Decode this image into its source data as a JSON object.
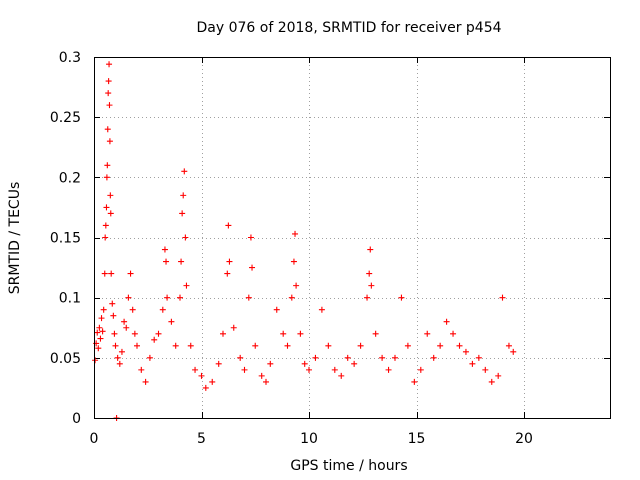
{
  "chart_data": {
    "type": "scatter",
    "title": "Day 076 of 2018, SRMTID for receiver p454",
    "xlabel": "GPS time / hours",
    "ylabel": "SRMTID / TECUs",
    "xlim": [
      0,
      24
    ],
    "ylim": [
      0,
      0.3
    ],
    "x_ticks": [
      0,
      5,
      10,
      15,
      20
    ],
    "x_tick_labels": [
      "0",
      "5",
      "10",
      "15",
      "20"
    ],
    "y_ticks": [
      0,
      0.05,
      0.1,
      0.15,
      0.2,
      0.25,
      0.3
    ],
    "y_tick_labels": [
      "0",
      "0.05",
      "0.1",
      "0.15",
      "0.2",
      "0.25",
      "0.3"
    ],
    "grid": true,
    "marker": "plus",
    "series_color": "#ff0000",
    "series": [
      {
        "name": "SRMTID",
        "points": [
          [
            0.05,
            0.048
          ],
          [
            0.1,
            0.062
          ],
          [
            0.15,
            0.071
          ],
          [
            0.2,
            0.058
          ],
          [
            0.25,
            0.075
          ],
          [
            0.3,
            0.066
          ],
          [
            0.35,
            0.083
          ],
          [
            0.4,
            0.072
          ],
          [
            0.45,
            0.09
          ],
          [
            0.5,
            0.12
          ],
          [
            0.52,
            0.15
          ],
          [
            0.55,
            0.16
          ],
          [
            0.58,
            0.175
          ],
          [
            0.6,
            0.2
          ],
          [
            0.62,
            0.21
          ],
          [
            0.64,
            0.24
          ],
          [
            0.66,
            0.27
          ],
          [
            0.68,
            0.28
          ],
          [
            0.7,
            0.294
          ],
          [
            0.72,
            0.26
          ],
          [
            0.74,
            0.23
          ],
          [
            0.76,
            0.185
          ],
          [
            0.78,
            0.17
          ],
          [
            0.8,
            0.12
          ],
          [
            0.85,
            0.095
          ],
          [
            0.9,
            0.085
          ],
          [
            0.95,
            0.07
          ],
          [
            1.0,
            0.06
          ],
          [
            1.1,
            0.05
          ],
          [
            1.2,
            0.045
          ],
          [
            1.3,
            0.055
          ],
          [
            1.4,
            0.08
          ],
          [
            1.5,
            0.075
          ],
          [
            1.6,
            0.1
          ],
          [
            1.7,
            0.12
          ],
          [
            1.8,
            0.09
          ],
          [
            1.9,
            0.07
          ],
          [
            2.0,
            0.06
          ],
          [
            2.2,
            0.04
          ],
          [
            2.4,
            0.03
          ],
          [
            2.6,
            0.05
          ],
          [
            2.8,
            0.065
          ],
          [
            3.0,
            0.07
          ],
          [
            3.2,
            0.09
          ],
          [
            3.3,
            0.14
          ],
          [
            3.35,
            0.13
          ],
          [
            3.4,
            0.1
          ],
          [
            3.6,
            0.08
          ],
          [
            3.8,
            0.06
          ],
          [
            4.0,
            0.1
          ],
          [
            4.05,
            0.13
          ],
          [
            4.1,
            0.17
          ],
          [
            4.15,
            0.185
          ],
          [
            4.2,
            0.205
          ],
          [
            4.25,
            0.15
          ],
          [
            4.3,
            0.11
          ],
          [
            4.5,
            0.06
          ],
          [
            4.7,
            0.04
          ],
          [
            5.0,
            0.035
          ],
          [
            5.2,
            0.025
          ],
          [
            5.5,
            0.03
          ],
          [
            5.8,
            0.045
          ],
          [
            6.0,
            0.07
          ],
          [
            6.2,
            0.12
          ],
          [
            6.25,
            0.16
          ],
          [
            6.3,
            0.13
          ],
          [
            6.5,
            0.075
          ],
          [
            6.8,
            0.05
          ],
          [
            7.0,
            0.04
          ],
          [
            7.2,
            0.1
          ],
          [
            7.3,
            0.15
          ],
          [
            7.35,
            0.125
          ],
          [
            7.5,
            0.06
          ],
          [
            7.8,
            0.035
          ],
          [
            8.0,
            0.03
          ],
          [
            8.2,
            0.045
          ],
          [
            8.5,
            0.09
          ],
          [
            8.8,
            0.07
          ],
          [
            9.0,
            0.06
          ],
          [
            9.2,
            0.1
          ],
          [
            9.3,
            0.13
          ],
          [
            9.35,
            0.153
          ],
          [
            9.4,
            0.11
          ],
          [
            9.6,
            0.07
          ],
          [
            9.8,
            0.045
          ],
          [
            10.0,
            0.04
          ],
          [
            10.3,
            0.05
          ],
          [
            10.6,
            0.09
          ],
          [
            10.9,
            0.06
          ],
          [
            11.2,
            0.04
          ],
          [
            11.5,
            0.035
          ],
          [
            11.8,
            0.05
          ],
          [
            12.1,
            0.045
          ],
          [
            12.4,
            0.06
          ],
          [
            12.7,
            0.1
          ],
          [
            12.8,
            0.12
          ],
          [
            12.85,
            0.14
          ],
          [
            12.9,
            0.11
          ],
          [
            13.1,
            0.07
          ],
          [
            13.4,
            0.05
          ],
          [
            13.7,
            0.04
          ],
          [
            14.0,
            0.05
          ],
          [
            14.3,
            0.1
          ],
          [
            14.6,
            0.06
          ],
          [
            14.9,
            0.03
          ],
          [
            15.2,
            0.04
          ],
          [
            15.5,
            0.07
          ],
          [
            15.8,
            0.05
          ],
          [
            16.1,
            0.06
          ],
          [
            16.4,
            0.08
          ],
          [
            16.7,
            0.07
          ],
          [
            17.0,
            0.06
          ],
          [
            17.3,
            0.055
          ],
          [
            17.6,
            0.045
          ],
          [
            17.9,
            0.05
          ],
          [
            18.2,
            0.04
          ],
          [
            18.5,
            0.03
          ],
          [
            18.8,
            0.035
          ],
          [
            19.0,
            0.1
          ],
          [
            19.3,
            0.06
          ],
          [
            19.5,
            0.055
          ],
          [
            1.05,
            0.0
          ]
        ]
      }
    ]
  }
}
